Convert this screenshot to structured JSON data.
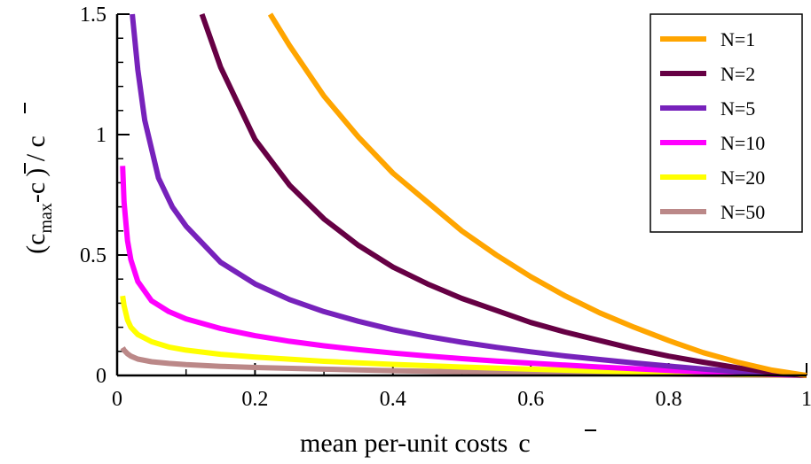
{
  "chart_data": {
    "type": "line",
    "xlabel": "mean per-unit costs",
    "xlabel_symbol": "c",
    "ylabel_parts": {
      "open": "(c",
      "sub": "max",
      "mid": "-c",
      "close": ") / c"
    },
    "xlim": [
      0,
      1
    ],
    "ylim": [
      0,
      1.5
    ],
    "x_ticks": [
      0,
      0.2,
      0.4,
      0.6,
      0.8,
      1
    ],
    "x_tick_labels": [
      "0",
      "0.2",
      "0.4",
      "0.6",
      "0.8",
      "1"
    ],
    "y_ticks": [
      0,
      0.5,
      1,
      1.5
    ],
    "y_tick_labels": [
      "0",
      "0.5",
      "1",
      "1.5"
    ],
    "grid": false,
    "legend_position": "top-right",
    "series": [
      {
        "name": "N=1",
        "color": "#FFA500",
        "x": [
          0.222,
          0.25,
          0.3,
          0.35,
          0.4,
          0.45,
          0.5,
          0.55,
          0.6,
          0.65,
          0.7,
          0.75,
          0.8,
          0.85,
          0.9,
          0.95,
          1.0
        ],
        "y": [
          1.5,
          1.37,
          1.16,
          0.99,
          0.84,
          0.72,
          0.6,
          0.5,
          0.41,
          0.33,
          0.26,
          0.2,
          0.145,
          0.095,
          0.055,
          0.022,
          0.0
        ]
      },
      {
        "name": "N=2",
        "color": "#660044",
        "x": [
          0.123,
          0.15,
          0.2,
          0.25,
          0.3,
          0.35,
          0.4,
          0.45,
          0.5,
          0.55,
          0.6,
          0.65,
          0.7,
          0.75,
          0.8,
          0.85,
          0.9,
          0.95,
          1.0
        ],
        "y": [
          1.5,
          1.28,
          0.98,
          0.79,
          0.65,
          0.54,
          0.45,
          0.38,
          0.32,
          0.27,
          0.22,
          0.18,
          0.145,
          0.11,
          0.08,
          0.055,
          0.032,
          0.013,
          0.0
        ]
      },
      {
        "name": "N=5",
        "color": "#7722BB",
        "x": [
          0.022,
          0.03,
          0.04,
          0.06,
          0.08,
          0.1,
          0.15,
          0.2,
          0.25,
          0.3,
          0.35,
          0.4,
          0.45,
          0.5,
          0.55,
          0.6,
          0.65,
          0.7,
          0.75,
          0.8,
          0.85,
          0.9,
          0.95,
          1.0
        ],
        "y": [
          1.5,
          1.27,
          1.06,
          0.82,
          0.7,
          0.62,
          0.47,
          0.38,
          0.315,
          0.265,
          0.225,
          0.19,
          0.162,
          0.138,
          0.117,
          0.098,
          0.081,
          0.066,
          0.052,
          0.039,
          0.027,
          0.016,
          0.007,
          0.0
        ]
      },
      {
        "name": "N=10",
        "color": "#FF00FF",
        "x": [
          0.008,
          0.01,
          0.015,
          0.02,
          0.03,
          0.05,
          0.075,
          0.1,
          0.15,
          0.2,
          0.25,
          0.3,
          0.35,
          0.4,
          0.45,
          0.5,
          0.55,
          0.6,
          0.65,
          0.7,
          0.75,
          0.8,
          0.85,
          0.9,
          0.95,
          1.0
        ],
        "y": [
          0.87,
          0.72,
          0.56,
          0.48,
          0.39,
          0.31,
          0.265,
          0.235,
          0.195,
          0.165,
          0.142,
          0.123,
          0.107,
          0.093,
          0.081,
          0.07,
          0.06,
          0.051,
          0.043,
          0.035,
          0.028,
          0.021,
          0.015,
          0.009,
          0.004,
          0.0
        ]
      },
      {
        "name": "N=20",
        "color": "#FFFF00",
        "x": [
          0.008,
          0.01,
          0.015,
          0.02,
          0.03,
          0.05,
          0.075,
          0.1,
          0.15,
          0.2,
          0.3,
          0.4,
          0.5,
          0.6,
          0.7,
          0.8,
          0.9,
          1.0
        ],
        "y": [
          0.33,
          0.29,
          0.23,
          0.2,
          0.17,
          0.14,
          0.118,
          0.105,
          0.088,
          0.076,
          0.059,
          0.046,
          0.035,
          0.026,
          0.018,
          0.011,
          0.005,
          0.0
        ]
      },
      {
        "name": "N=50",
        "color": "#BB8888",
        "x": [
          0.008,
          0.01,
          0.015,
          0.02,
          0.03,
          0.05,
          0.075,
          0.1,
          0.15,
          0.2,
          0.3,
          0.4,
          0.5,
          0.6,
          0.7,
          0.8,
          0.9,
          1.0
        ],
        "y": [
          0.115,
          0.105,
          0.09,
          0.08,
          0.068,
          0.057,
          0.05,
          0.045,
          0.038,
          0.033,
          0.026,
          0.02,
          0.015,
          0.011,
          0.008,
          0.005,
          0.002,
          0.0
        ]
      }
    ]
  }
}
